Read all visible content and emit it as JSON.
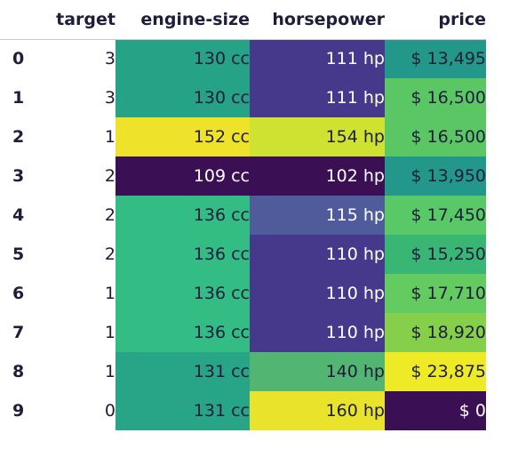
{
  "table": {
    "columns": {
      "target": "target",
      "engine_size": "engine-size",
      "horsepower": "horsepower",
      "price": "price"
    },
    "rows": [
      {
        "index": "0",
        "target": "3",
        "engine_size": "130 cc",
        "horsepower": "111 hp",
        "price": "$ 13,495",
        "engine_color": "#26a386",
        "hp_color": "#46388a",
        "price_color": "#24978b"
      },
      {
        "index": "1",
        "target": "3",
        "engine_size": "130 cc",
        "horsepower": "111 hp",
        "price": "$ 16,500",
        "engine_color": "#26a386",
        "hp_color": "#46388a",
        "price_color": "#5bc764"
      },
      {
        "index": "2",
        "target": "1",
        "engine_size": "152 cc",
        "horsepower": "154 hp",
        "price": "$ 16,500",
        "engine_color": "#eee32a",
        "hp_color": "#cfe232",
        "price_color": "#5bc764"
      },
      {
        "index": "3",
        "target": "2",
        "engine_size": "109 cc",
        "horsepower": "102 hp",
        "price": "$ 13,950",
        "engine_color": "#3b0f54",
        "hp_color": "#3b0f54",
        "price_color": "#24978b"
      },
      {
        "index": "4",
        "target": "2",
        "engine_size": "136 cc",
        "horsepower": "115 hp",
        "price": "$ 17,450",
        "engine_color": "#33bd85",
        "hp_color": "#4f5b9b",
        "price_color": "#59c866"
      },
      {
        "index": "5",
        "target": "2",
        "engine_size": "136 cc",
        "horsepower": "110 hp",
        "price": "$ 15,250",
        "engine_color": "#33bd85",
        "hp_color": "#46388a",
        "price_color": "#39b674"
      },
      {
        "index": "6",
        "target": "1",
        "engine_size": "136 cc",
        "horsepower": "110 hp",
        "price": "$ 17,710",
        "engine_color": "#33bd85",
        "hp_color": "#46388a",
        "price_color": "#63cb5f"
      },
      {
        "index": "7",
        "target": "1",
        "engine_size": "136 cc",
        "horsepower": "110 hp",
        "price": "$ 18,920",
        "engine_color": "#33bd85",
        "hp_color": "#46388a",
        "price_color": "#86cf4a"
      },
      {
        "index": "8",
        "target": "1",
        "engine_size": "131 cc",
        "horsepower": "140 hp",
        "price": "$ 23,875",
        "engine_color": "#27a586",
        "hp_color": "#52b571",
        "price_color": "#eeea26"
      },
      {
        "index": "9",
        "target": "0",
        "engine_size": "131 cc",
        "horsepower": "160 hp",
        "price": "$ 0",
        "engine_color": "#27a586",
        "hp_color": "#e9e32c",
        "price_color": "#3b0f54"
      }
    ]
  }
}
